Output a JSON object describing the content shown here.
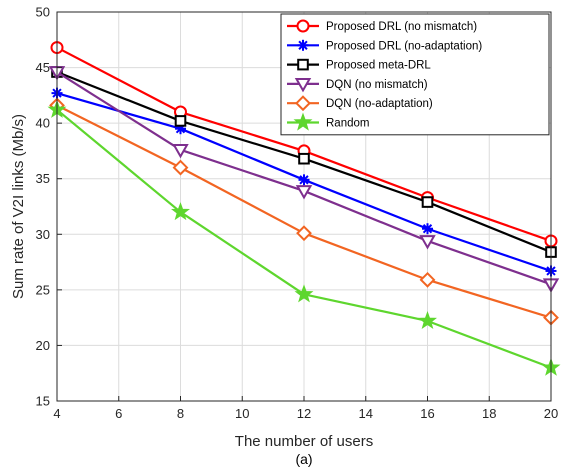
{
  "chart_data": {
    "type": "line",
    "title": "",
    "xlabel": "The number of users",
    "ylabel": "Sum rate of V2I links (Mb/s)",
    "caption": "(a)",
    "x": [
      4,
      8,
      12,
      16,
      20
    ],
    "xlim": [
      4,
      20
    ],
    "ylim": [
      15,
      50
    ],
    "xticks": [
      4,
      6,
      8,
      10,
      12,
      14,
      16,
      18,
      20
    ],
    "yticks": [
      15,
      20,
      25,
      30,
      35,
      40,
      45,
      50
    ],
    "grid": true,
    "legend_position": "top-right",
    "series": [
      {
        "name": "Proposed DRL (no mismatch)",
        "values": [
          46.8,
          41.0,
          37.5,
          33.3,
          29.4
        ],
        "color": "#ff0000",
        "marker": "circle"
      },
      {
        "name": "Proposed DRL (no-adaptation)",
        "values": [
          42.7,
          39.5,
          34.9,
          30.5,
          26.7
        ],
        "color": "#0000ff",
        "marker": "asterisk"
      },
      {
        "name": "Proposed meta-DRL",
        "values": [
          44.6,
          40.2,
          36.8,
          32.9,
          28.4
        ],
        "color": "#000000",
        "marker": "square"
      },
      {
        "name": "DQN (no mismatch)",
        "values": [
          44.6,
          37.6,
          33.9,
          29.4,
          25.5
        ],
        "color": "#7e2f8e",
        "marker": "triangle-down"
      },
      {
        "name": "DQN  (no-adaptation)",
        "values": [
          41.6,
          36.0,
          30.1,
          25.9,
          22.5
        ],
        "color": "#f26522",
        "marker": "diamond"
      },
      {
        "name": "Random",
        "values": [
          41.2,
          32.0,
          24.6,
          22.2,
          18.0
        ],
        "color": "#5ed62e",
        "marker": "star"
      }
    ]
  }
}
